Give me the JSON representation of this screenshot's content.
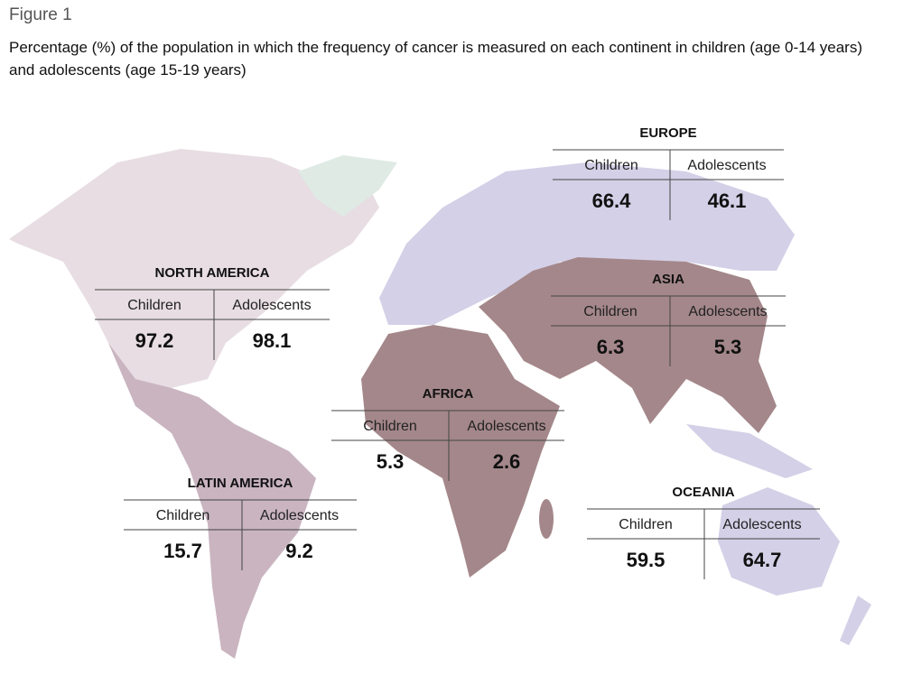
{
  "figure_label": "Figure 1",
  "title": "Percentage (%) of the population in which the frequency of cancer is measured on each continent in children (age 0-14 years) and adolescents (age 15-19 years)",
  "regions": [
    {
      "name": "EUROPE",
      "columns": [
        "Children",
        "Adolescents"
      ],
      "values": [
        66.4,
        46.1
      ]
    },
    {
      "name": "NORTH AMERICA",
      "columns": [
        "Children",
        "Adolescents"
      ],
      "values": [
        97.2,
        98.1
      ]
    },
    {
      "name": "ASIA",
      "columns": [
        "Children",
        "Adolescents"
      ],
      "values": [
        6.3,
        5.3
      ]
    },
    {
      "name": "AFRICA",
      "columns": [
        "Children",
        "Adolescents"
      ],
      "values": [
        5.3,
        2.6
      ]
    },
    {
      "name": "LATIN AMERICA",
      "columns": [
        "Children",
        "Adolescents"
      ],
      "values": [
        15.7,
        9.2
      ]
    },
    {
      "name": "OCEANIA",
      "columns": [
        "Children",
        "Adolescents"
      ],
      "values": [
        59.5,
        64.7
      ]
    }
  ]
}
